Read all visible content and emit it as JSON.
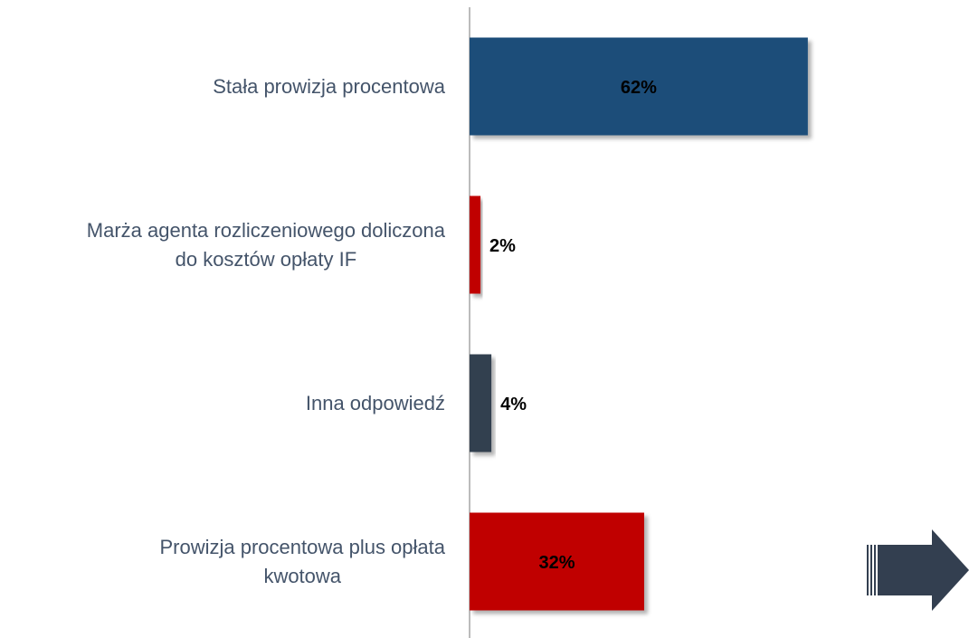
{
  "chart_data": {
    "type": "hbar",
    "categories": [
      "Stała prowizja procentowa",
      "Marża agenta rozliczeniowego doliczona\ndo kosztów opłaty IF",
      "Inna odpowiedź",
      "Prowizja procentowa plus opłata\nkwotowa"
    ],
    "values": [
      62,
      2,
      4,
      32
    ],
    "value_labels": [
      "62%",
      "2%",
      "4%",
      "32%"
    ],
    "colors": [
      "#1f4e79",
      "#c00000",
      "#333f50",
      "#c00000"
    ],
    "xlim": [
      0,
      100
    ]
  }
}
